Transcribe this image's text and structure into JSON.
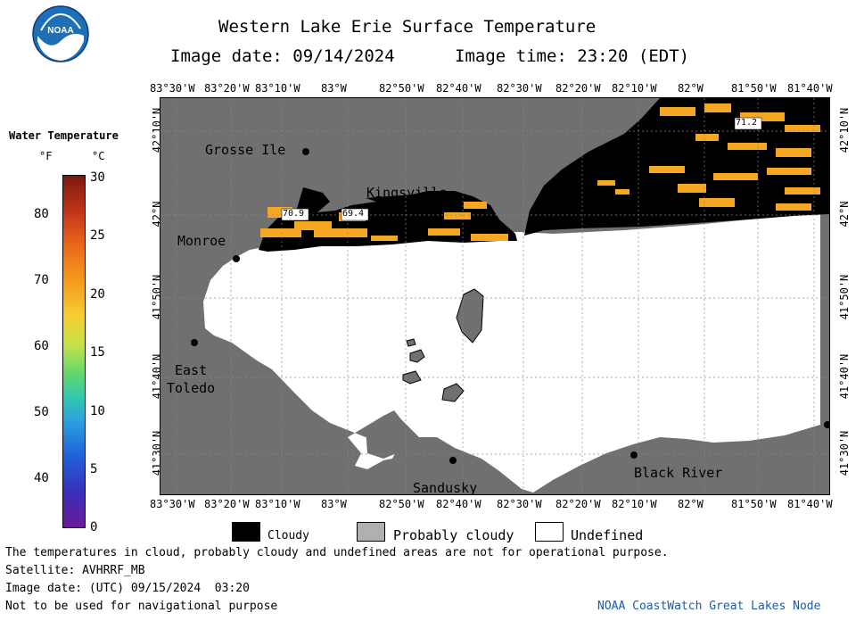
{
  "header": {
    "title": "Western Lake Erie Surface Temperature",
    "image_date": "Image date: 09/14/2024",
    "image_time": "Image time: 23:20 (EDT)"
  },
  "colorbar": {
    "title": "Water Temperature",
    "unit_f": "°F",
    "unit_c": "°C",
    "f_ticks": [
      "80",
      "70",
      "60",
      "50",
      "40"
    ],
    "c_ticks": [
      "30",
      "25",
      "20",
      "15",
      "10",
      "5",
      "0"
    ]
  },
  "axes": {
    "lon_labels": [
      "83°30'W",
      "83°20'W",
      "83°10'W",
      "83°W",
      "82°50'W",
      "82°40'W",
      "82°30'W",
      "82°20'W",
      "82°10'W",
      "82°W",
      "81°50'W",
      "81°40'W"
    ],
    "lat_labels": [
      "42°10'N",
      "42°N",
      "41°50'N",
      "41°40'N",
      "41°30'N"
    ]
  },
  "places": {
    "grosse_ile": "Grosse Ile",
    "kingsville": "Kingsville",
    "monroe": "Monroe",
    "east_toledo_1": "East",
    "east_toledo_2": "Toledo",
    "sandusky": "Sandusky",
    "black_river": "Black River"
  },
  "readouts": [
    "70.9",
    "69.4",
    "71.2"
  ],
  "legend": {
    "cloudy": "Cloudy",
    "probably_cloudy": "Probably cloudy",
    "undefined": "Undefined"
  },
  "footer": {
    "disclaimer": "The temperatures in cloud, probably cloudy and undefined areas are not for operational purpose.",
    "satellite": "Satellite: AVHRRF_MB",
    "utc_date": "Image date: (UTC) 09/15/2024  03:20",
    "nav_warning": "Not to be used for navigational purpose",
    "credit": "NOAA CoastWatch Great Lakes Node"
  },
  "logo_text": "NOAA",
  "colors": {
    "land": "#707070",
    "cloud": "#000000",
    "undefined": "#ffffff",
    "warm_water": "#f5a623",
    "credit_blue": "#1e5aa8"
  }
}
